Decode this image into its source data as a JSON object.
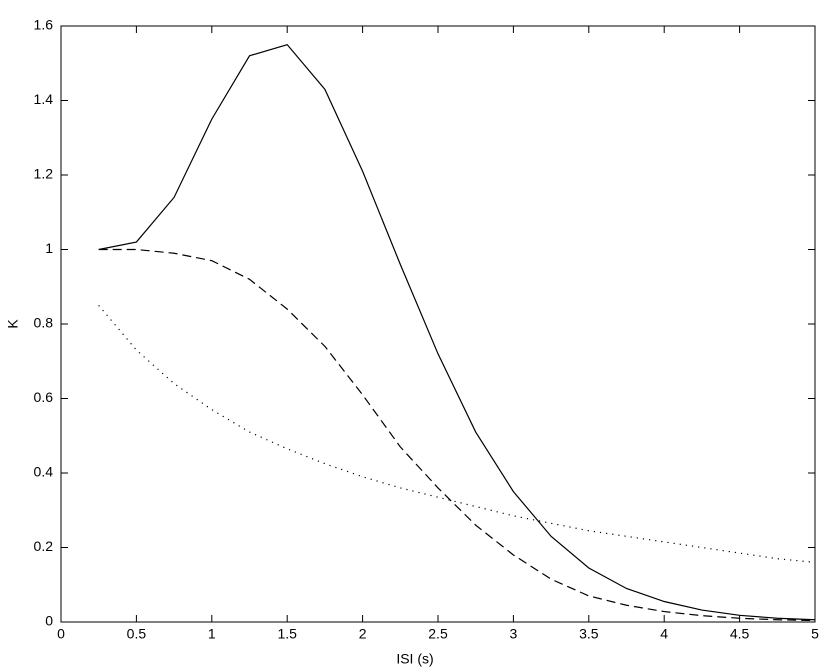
{
  "chart_data": {
    "type": "line",
    "xlabel": "ISI (s)",
    "ylabel": "K",
    "x": [
      0.25,
      0.5,
      0.75,
      1,
      1.25,
      1.5,
      1.75,
      2,
      2.25,
      2.5,
      2.75,
      3,
      3.25,
      3.5,
      3.75,
      4,
      4.25,
      4.5,
      4.75,
      5
    ],
    "series": [
      {
        "color": "#000000",
        "dash": "solid",
        "values": [
          1.0,
          1.02,
          1.14,
          1.35,
          1.52,
          1.55,
          1.43,
          1.21,
          0.96,
          0.72,
          0.51,
          0.35,
          0.23,
          0.145,
          0.09,
          0.055,
          0.032,
          0.018,
          0.01,
          0.006
        ]
      },
      {
        "color": "#000000",
        "dash": "dashed",
        "values": [
          1.0,
          1.0,
          0.99,
          0.97,
          0.92,
          0.84,
          0.74,
          0.61,
          0.47,
          0.36,
          0.26,
          0.18,
          0.115,
          0.07,
          0.045,
          0.028,
          0.017,
          0.01,
          0.006,
          0.004
        ]
      },
      {
        "color": "#000000",
        "dash": "dotted",
        "values": [
          0.85,
          0.73,
          0.64,
          0.57,
          0.51,
          0.465,
          0.425,
          0.39,
          0.36,
          0.335,
          0.31,
          0.285,
          0.265,
          0.245,
          0.23,
          0.215,
          0.2,
          0.185,
          0.17,
          0.16
        ]
      }
    ],
    "xlim": [
      0,
      5
    ],
    "xticks": [
      0,
      0.5,
      1,
      1.5,
      2,
      2.5,
      3,
      3.5,
      4,
      4.5,
      5
    ],
    "ylim": [
      0,
      1.6
    ],
    "yticks": [
      0,
      0.2,
      0.4,
      0.6,
      0.8,
      1,
      1.2,
      1.4,
      1.6
    ],
    "grid": false
  }
}
